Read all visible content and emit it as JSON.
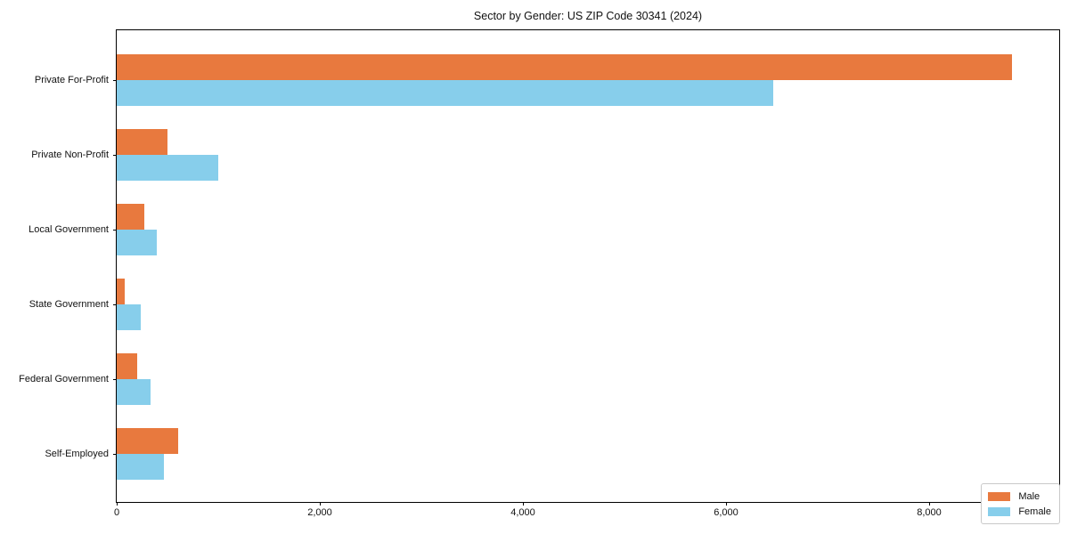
{
  "chart_data": {
    "type": "bar",
    "orientation": "horizontal",
    "title": "Sector by Gender: US ZIP Code 30341 (2024)",
    "categories": [
      "Private For-Profit",
      "Private Non-Profit",
      "Local Government",
      "State Government",
      "Federal Government",
      "Self-Employed"
    ],
    "series": [
      {
        "name": "Male",
        "color": "#e8793e",
        "values": [
          8820,
          500,
          275,
          80,
          205,
          605
        ]
      },
      {
        "name": "Female",
        "color": "#87ceeb",
        "values": [
          6470,
          1000,
          395,
          240,
          330,
          465
        ]
      }
    ],
    "xlabel": "",
    "ylabel": "",
    "xlim": [
      0,
      9300
    ],
    "x_ticks": [
      0,
      2000,
      4000,
      6000,
      8000
    ],
    "x_tick_labels": [
      "0",
      "2,000",
      "4,000",
      "6,000",
      "8,000"
    ],
    "grid": false,
    "legend_position": "lower-right",
    "axis_color": "#000000"
  }
}
